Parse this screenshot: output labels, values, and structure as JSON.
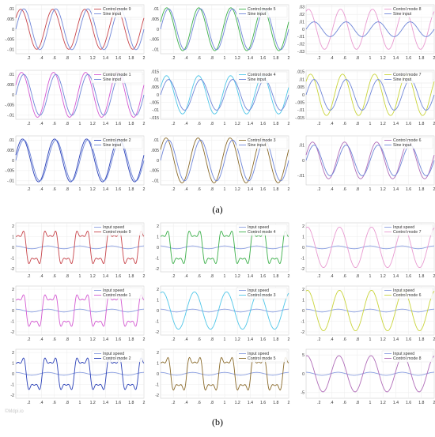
{
  "figure": {
    "caption_a": "(a)",
    "caption_b": "(b)",
    "watermark": "©Mdpi.io"
  },
  "colors": {
    "input": "#6f86d8",
    "input_speed": "#8b9fe0",
    "mode9": "#c8444a",
    "mode5": "#3cb04a",
    "mode8": "#e89ad0",
    "mode1": "#d45ad2",
    "mode4": "#4fc6e8",
    "mode7": "#c9d43a",
    "mode2": "#2a40b8",
    "mode3": "#8a6a2a",
    "mode6": "#b06cb8"
  },
  "chart_data": [
    {
      "type": "line",
      "panel": "a",
      "row": 0,
      "col": 0,
      "legend": [
        "Control mode 9",
        "Sine input"
      ],
      "legend_position": "top-right",
      "ylim": [
        -0.012,
        0.012
      ],
      "yticks": [
        -0.01,
        -0.005,
        0,
        0.005,
        0.01
      ],
      "xlim": [
        0,
        2
      ],
      "xticks": [
        0.2,
        0.4,
        0.6,
        0.8,
        1,
        1.2,
        1.4,
        1.6,
        1.8,
        2
      ],
      "grid": true,
      "series": [
        {
          "name": "Control mode 9",
          "color_key": "mode9",
          "amplitude": 0.0098,
          "frequency": 2,
          "phase": 0.6
        },
        {
          "name": "Sine input",
          "color_key": "input",
          "amplitude": 0.01,
          "frequency": 2,
          "phase": 0
        }
      ]
    },
    {
      "type": "line",
      "panel": "a",
      "row": 0,
      "col": 1,
      "legend": [
        "Control mode 5",
        "Sine input"
      ],
      "legend_position": "top-right",
      "ylim": [
        -0.012,
        0.012
      ],
      "yticks": [
        -0.01,
        -0.005,
        0,
        0.005,
        0.01
      ],
      "xlim": [
        0,
        2
      ],
      "xticks": [
        0.2,
        0.4,
        0.6,
        0.8,
        1,
        1.2,
        1.4,
        1.6,
        1.8,
        2
      ],
      "grid": true,
      "series": [
        {
          "name": "Control mode 5",
          "color_key": "mode5",
          "amplitude": 0.0105,
          "frequency": 2,
          "phase": 0.35
        },
        {
          "name": "Sine input",
          "color_key": "input",
          "amplitude": 0.01,
          "frequency": 2,
          "phase": 0
        }
      ]
    },
    {
      "type": "line",
      "panel": "a",
      "row": 0,
      "col": 2,
      "legend": [
        "Control mode 8",
        "Sine input"
      ],
      "legend_position": "top-right",
      "ylim": [
        -0.033,
        0.033
      ],
      "yticks": [
        -0.03,
        -0.02,
        -0.01,
        0,
        0.01,
        0.02,
        0.03
      ],
      "xlim": [
        0,
        2
      ],
      "xticks": [
        0.2,
        0.4,
        0.6,
        0.8,
        1,
        1.2,
        1.4,
        1.6,
        1.8,
        2
      ],
      "grid": true,
      "series": [
        {
          "name": "Control mode 8",
          "color_key": "mode8",
          "amplitude": 0.027,
          "frequency": 2,
          "phase": 1.1
        },
        {
          "name": "Sine input",
          "color_key": "input",
          "amplitude": 0.01,
          "frequency": 2,
          "phase": 0
        }
      ]
    },
    {
      "type": "line",
      "panel": "a",
      "row": 1,
      "col": 0,
      "legend": [
        "Control mode 1",
        "Sine input"
      ],
      "legend_position": "top-right",
      "ylim": [
        -0.012,
        0.012
      ],
      "yticks": [
        -0.01,
        -0.005,
        0,
        0.005,
        0.01
      ],
      "xlim": [
        0,
        2
      ],
      "xticks": [
        0.2,
        0.4,
        0.6,
        0.8,
        1,
        1.2,
        1.4,
        1.6,
        1.8,
        2
      ],
      "grid": true,
      "series": [
        {
          "name": "Control mode 1",
          "color_key": "mode1",
          "amplitude": 0.011,
          "frequency": 2,
          "phase": 0.45
        },
        {
          "name": "Sine input",
          "color_key": "input",
          "amplitude": 0.01,
          "frequency": 2,
          "phase": 0
        }
      ]
    },
    {
      "type": "line",
      "panel": "a",
      "row": 1,
      "col": 1,
      "legend": [
        "Control mode 4",
        "Sine input"
      ],
      "legend_position": "top-right",
      "ylim": [
        -0.016,
        0.016
      ],
      "yticks": [
        -0.015,
        -0.01,
        -0.005,
        0,
        0.005,
        0.01,
        0.015
      ],
      "xlim": [
        0,
        2
      ],
      "xticks": [
        0.2,
        0.4,
        0.6,
        0.8,
        1,
        1.2,
        1.4,
        1.6,
        1.8,
        2
      ],
      "grid": true,
      "series": [
        {
          "name": "Control mode 4",
          "color_key": "mode4",
          "amplitude": 0.0125,
          "frequency": 2,
          "phase": 0.4
        },
        {
          "name": "Sine input",
          "color_key": "input",
          "amplitude": 0.01,
          "frequency": 2,
          "phase": 0
        }
      ]
    },
    {
      "type": "line",
      "panel": "a",
      "row": 1,
      "col": 2,
      "legend": [
        "Control mode 7",
        "Sine input"
      ],
      "legend_position": "top-right",
      "ylim": [
        -0.016,
        0.016
      ],
      "yticks": [
        -0.015,
        -0.01,
        -0.005,
        0,
        0.005,
        0.01,
        0.015
      ],
      "xlim": [
        0,
        2
      ],
      "xticks": [
        0.2,
        0.4,
        0.6,
        0.8,
        1,
        1.2,
        1.4,
        1.6,
        1.8,
        2
      ],
      "grid": true,
      "series": [
        {
          "name": "Control mode 7",
          "color_key": "mode7",
          "amplitude": 0.0135,
          "frequency": 2,
          "phase": 0.7
        },
        {
          "name": "Sine input",
          "color_key": "input",
          "amplitude": 0.01,
          "frequency": 2,
          "phase": 0
        }
      ]
    },
    {
      "type": "line",
      "panel": "a",
      "row": 2,
      "col": 0,
      "legend": [
        "Control mode 2",
        "Sine input"
      ],
      "legend_position": "top-right",
      "ylim": [
        -0.012,
        0.012
      ],
      "yticks": [
        -0.01,
        -0.005,
        0,
        0.005,
        0.01
      ],
      "xlim": [
        0,
        2
      ],
      "xticks": [
        0.2,
        0.4,
        0.6,
        0.8,
        1,
        1.2,
        1.4,
        1.6,
        1.8,
        2
      ],
      "grid": true,
      "series": [
        {
          "name": "Control mode 2",
          "color_key": "mode2",
          "amplitude": 0.0105,
          "frequency": 2,
          "phase": 0.25
        },
        {
          "name": "Sine input",
          "color_key": "input",
          "amplitude": 0.01,
          "frequency": 2,
          "phase": 0
        }
      ]
    },
    {
      "type": "line",
      "panel": "a",
      "row": 2,
      "col": 1,
      "legend": [
        "Control mode 3",
        "Sine input"
      ],
      "legend_position": "top-right",
      "ylim": [
        -0.012,
        0.012
      ],
      "yticks": [
        -0.01,
        -0.005,
        0,
        0.005,
        0.01
      ],
      "xlim": [
        0,
        2
      ],
      "xticks": [
        0.2,
        0.4,
        0.6,
        0.8,
        1,
        1.2,
        1.4,
        1.6,
        1.8,
        2
      ],
      "grid": true,
      "series": [
        {
          "name": "Control mode 3",
          "color_key": "mode3",
          "amplitude": 0.011,
          "frequency": 2,
          "phase": 0.5
        },
        {
          "name": "Sine input",
          "color_key": "input",
          "amplitude": 0.01,
          "frequency": 2,
          "phase": 0
        }
      ]
    },
    {
      "type": "line",
      "panel": "a",
      "row": 2,
      "col": 2,
      "legend": [
        "Control mode 6",
        "Sine input"
      ],
      "legend_position": "top-right",
      "ylim": [
        -0.016,
        0.016
      ],
      "yticks": [
        -0.01,
        0,
        0.01
      ],
      "xlim": [
        0,
        2
      ],
      "xticks": [
        0.2,
        0.4,
        0.6,
        0.8,
        1,
        1.2,
        1.4,
        1.6,
        1.8,
        2
      ],
      "grid": true,
      "series": [
        {
          "name": "Control mode 6",
          "color_key": "mode6",
          "amplitude": 0.012,
          "frequency": 2,
          "phase": 0.3
        },
        {
          "name": "Sine input",
          "color_key": "input",
          "amplitude": 0.01,
          "frequency": 2,
          "phase": 0
        }
      ]
    },
    {
      "type": "line",
      "panel": "b",
      "row": 0,
      "col": 0,
      "legend": [
        "Input speed",
        "Control mode 9"
      ],
      "legend_position": "top-right",
      "ylim": [
        -2.3,
        2.3
      ],
      "yticks": [
        -2,
        -1,
        0,
        1,
        2
      ],
      "xlim": [
        0,
        2
      ],
      "xticks": [
        0.2,
        0.4,
        0.6,
        0.8,
        1,
        1.2,
        1.4,
        1.6,
        1.8,
        2
      ],
      "grid": true,
      "series": [
        {
          "name": "Input speed",
          "color_key": "input_speed",
          "amplitude": 0.13,
          "frequency": 2,
          "phase": 1.5708
        },
        {
          "name": "Control mode 9",
          "color_key": "mode9",
          "amplitude": 1.85,
          "frequency": 2,
          "phase": 1.1,
          "shape": "spiky"
        }
      ]
    },
    {
      "type": "line",
      "panel": "b",
      "row": 0,
      "col": 1,
      "legend": [
        "Input speed",
        "Control mode 4"
      ],
      "legend_position": "top-right",
      "ylim": [
        -2.3,
        2.3
      ],
      "yticks": [
        -2,
        -1,
        0,
        1,
        2
      ],
      "xlim": [
        0,
        2
      ],
      "xticks": [
        0.2,
        0.4,
        0.6,
        0.8,
        1,
        1.2,
        1.4,
        1.6,
        1.8,
        2
      ],
      "grid": true,
      "series": [
        {
          "name": "Input speed",
          "color_key": "input_speed",
          "amplitude": 0.13,
          "frequency": 2,
          "phase": 1.5708
        },
        {
          "name": "Control mode 4",
          "color_key": "mode5",
          "amplitude": 1.85,
          "frequency": 2,
          "phase": 1.2,
          "shape": "spiky"
        }
      ]
    },
    {
      "type": "line",
      "panel": "b",
      "row": 0,
      "col": 2,
      "legend": [
        "Input speed",
        "Control mode 7"
      ],
      "legend_position": "top-right",
      "ylim": [
        -2.3,
        2.3
      ],
      "yticks": [
        -2,
        -1,
        0,
        1,
        2
      ],
      "xlim": [
        0,
        2
      ],
      "xticks": [
        0.2,
        0.4,
        0.6,
        0.8,
        1,
        1.2,
        1.4,
        1.6,
        1.8,
        2
      ],
      "grid": true,
      "series": [
        {
          "name": "Input speed",
          "color_key": "input_speed",
          "amplitude": 0.13,
          "frequency": 2,
          "phase": 1.5708
        },
        {
          "name": "Control mode 7",
          "color_key": "mode8",
          "amplitude": 1.9,
          "frequency": 2,
          "phase": 1.3,
          "shape": "smooth"
        }
      ]
    },
    {
      "type": "line",
      "panel": "b",
      "row": 1,
      "col": 0,
      "legend": [
        "Input speed",
        "Control mode 1"
      ],
      "legend_position": "top-right",
      "ylim": [
        -2.3,
        2.3
      ],
      "yticks": [
        -2,
        -1,
        0,
        1,
        2
      ],
      "xlim": [
        0,
        2
      ],
      "xticks": [
        0.2,
        0.4,
        0.6,
        0.8,
        1,
        1.2,
        1.4,
        1.6,
        1.8,
        2
      ],
      "grid": true,
      "series": [
        {
          "name": "Input speed",
          "color_key": "input_speed",
          "amplitude": 0.13,
          "frequency": 2,
          "phase": 1.5708
        },
        {
          "name": "Control mode 1",
          "color_key": "mode1",
          "amplitude": 1.8,
          "frequency": 2,
          "phase": 1.1,
          "shape": "spiky"
        }
      ]
    },
    {
      "type": "line",
      "panel": "b",
      "row": 1,
      "col": 1,
      "legend": [
        "Input speed",
        "Control mode 3"
      ],
      "legend_position": "top-right",
      "ylim": [
        -2.3,
        2.3
      ],
      "yticks": [
        -2,
        -1,
        0,
        1,
        2
      ],
      "xlim": [
        0,
        2
      ],
      "xticks": [
        0.2,
        0.4,
        0.6,
        0.8,
        1,
        1.2,
        1.4,
        1.6,
        1.8,
        2
      ],
      "grid": true,
      "series": [
        {
          "name": "Input speed",
          "color_key": "input_speed",
          "amplitude": 0.13,
          "frequency": 2,
          "phase": 1.5708
        },
        {
          "name": "Control mode 3",
          "color_key": "mode4",
          "amplitude": 1.75,
          "frequency": 2,
          "phase": 1.2,
          "shape": "smooth"
        }
      ]
    },
    {
      "type": "line",
      "panel": "b",
      "row": 1,
      "col": 2,
      "legend": [
        "Input speed",
        "Control mode 6"
      ],
      "legend_position": "top-right",
      "ylim": [
        -2.3,
        2.3
      ],
      "yticks": [
        -2,
        -1,
        0,
        1,
        2
      ],
      "xlim": [
        0,
        2
      ],
      "xticks": [
        0.2,
        0.4,
        0.6,
        0.8,
        1,
        1.2,
        1.4,
        1.6,
        1.8,
        2
      ],
      "grid": true,
      "series": [
        {
          "name": "Input speed",
          "color_key": "input_speed",
          "amplitude": 0.13,
          "frequency": 2,
          "phase": 1.5708
        },
        {
          "name": "Control mode 6",
          "color_key": "mode7",
          "amplitude": 1.9,
          "frequency": 2,
          "phase": 1.3,
          "shape": "smooth"
        }
      ]
    },
    {
      "type": "line",
      "panel": "b",
      "row": 2,
      "col": 0,
      "legend": [
        "Input speed",
        "Control mode 2"
      ],
      "legend_position": "top-right",
      "ylim": [
        -2.3,
        2.3
      ],
      "yticks": [
        -2,
        -1,
        0,
        1,
        2
      ],
      "xlim": [
        0,
        2
      ],
      "xticks": [
        0.2,
        0.4,
        0.6,
        0.8,
        1,
        1.2,
        1.4,
        1.6,
        1.8,
        2
      ],
      "grid": true,
      "series": [
        {
          "name": "Input speed",
          "color_key": "input_speed",
          "amplitude": 0.13,
          "frequency": 2,
          "phase": 1.5708
        },
        {
          "name": "Control mode 2",
          "color_key": "mode2",
          "amplitude": 1.8,
          "frequency": 2,
          "phase": 1.1,
          "shape": "spiky"
        }
      ]
    },
    {
      "type": "line",
      "panel": "b",
      "row": 2,
      "col": 1,
      "legend": [
        "Input speed",
        "Control mode 5"
      ],
      "legend_position": "top-right",
      "ylim": [
        -2.3,
        2.3
      ],
      "yticks": [
        -2,
        -1,
        0,
        1,
        2
      ],
      "xlim": [
        0,
        2
      ],
      "xticks": [
        0.2,
        0.4,
        0.6,
        0.8,
        1,
        1.2,
        1.4,
        1.6,
        1.8,
        2
      ],
      "grid": true,
      "series": [
        {
          "name": "Input speed",
          "color_key": "input_speed",
          "amplitude": 0.13,
          "frequency": 2,
          "phase": 1.5708
        },
        {
          "name": "Control mode 5",
          "color_key": "mode3",
          "amplitude": 1.85,
          "frequency": 2,
          "phase": 1.15,
          "shape": "spiky"
        }
      ]
    },
    {
      "type": "line",
      "panel": "b",
      "row": 2,
      "col": 2,
      "legend": [
        "Input speed",
        "Control mode 8"
      ],
      "legend_position": "top-right",
      "ylim": [
        -6.5,
        6.5
      ],
      "yticks": [
        -5,
        0,
        5
      ],
      "xlim": [
        0,
        2
      ],
      "xticks": [
        0.2,
        0.4,
        0.6,
        0.8,
        1,
        1.2,
        1.4,
        1.6,
        1.8,
        2
      ],
      "grid": true,
      "series": [
        {
          "name": "Input speed",
          "color_key": "input_speed",
          "amplitude": 0.4,
          "frequency": 2,
          "phase": 1.5708
        },
        {
          "name": "Control mode 8",
          "color_key": "mode6",
          "amplitude": 4.8,
          "frequency": 2,
          "phase": 1.4,
          "shape": "smooth"
        }
      ]
    }
  ]
}
